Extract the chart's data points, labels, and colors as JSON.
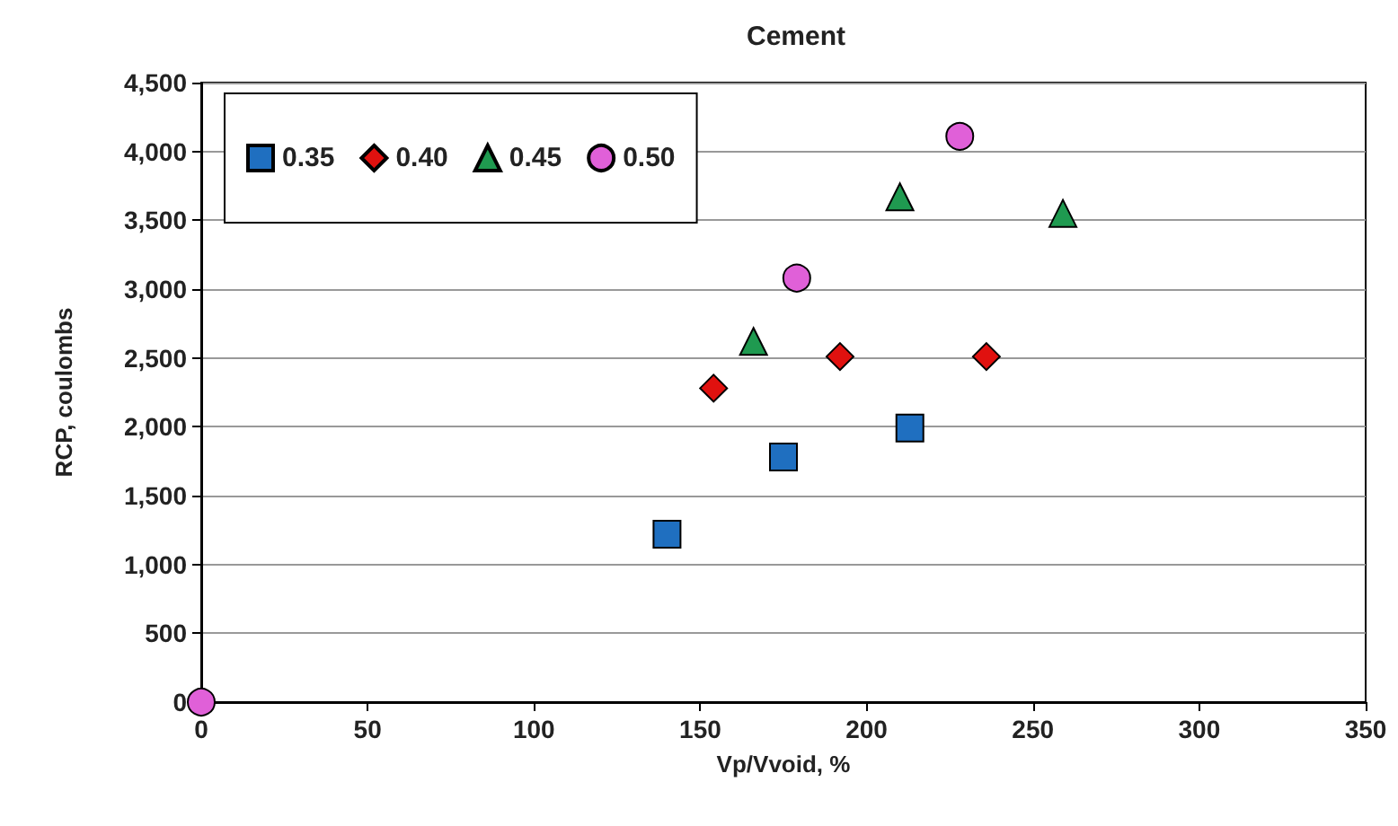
{
  "chart_data": {
    "type": "scatter",
    "title": "Cement",
    "xlabel": "Vp/Vvoid, %",
    "ylabel": "RCP, coulombs",
    "series": [
      {
        "name": "0.35",
        "color": "#1f6fc0",
        "marker": "square",
        "x": [
          140,
          175,
          213
        ],
        "values": [
          1220,
          1780,
          1990
        ]
      },
      {
        "name": "0.40",
        "color": "#e0110f",
        "marker": "diamond",
        "x": [
          154,
          192,
          236
        ],
        "values": [
          2280,
          2510,
          2510
        ]
      },
      {
        "name": "0.45",
        "color": "#1f9a50",
        "marker": "triangle",
        "x": [
          166,
          210,
          259
        ],
        "values": [
          2620,
          3670,
          3550
        ]
      },
      {
        "name": "0.50",
        "color": "#e060d8",
        "marker": "circle",
        "x": [
          0,
          179,
          228
        ],
        "values": [
          0,
          3080,
          4110
        ]
      }
    ],
    "xlim": [
      0,
      350
    ],
    "xticks": [
      0,
      50,
      100,
      150,
      200,
      250,
      300,
      350
    ],
    "ylim": [
      0,
      4500
    ],
    "yticks": [
      {
        "value": 0,
        "label": "0"
      },
      {
        "value": 500,
        "label": "500"
      },
      {
        "value": 1000,
        "label": "1,000"
      },
      {
        "value": 1500,
        "label": "1,500"
      },
      {
        "value": 2000,
        "label": "2,000"
      },
      {
        "value": 2500,
        "label": "2,500"
      },
      {
        "value": 3000,
        "label": "3,000"
      },
      {
        "value": 3500,
        "label": "3,500"
      },
      {
        "value": 4000,
        "label": "4,000"
      },
      {
        "value": 4500,
        "label": "4,500"
      }
    ],
    "grid": "y",
    "legend": "top left"
  }
}
